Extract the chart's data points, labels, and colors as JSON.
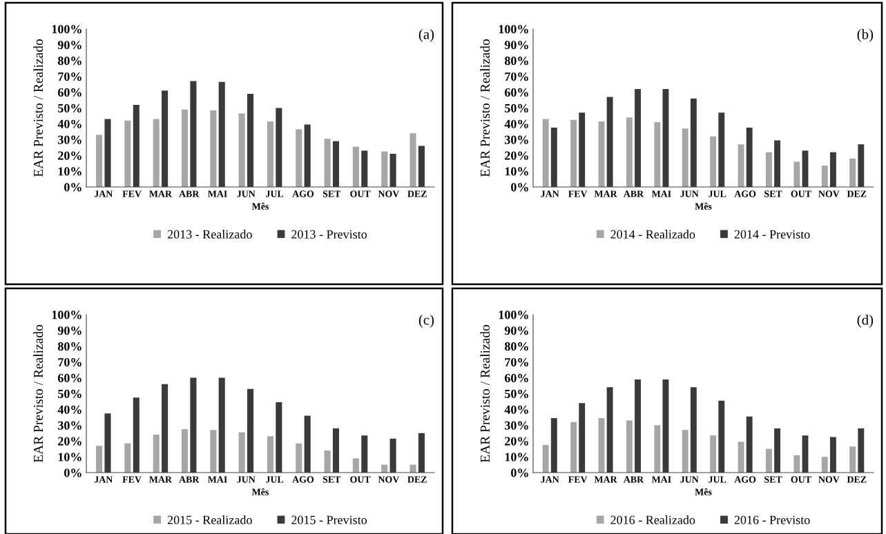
{
  "chart_data": [
    {
      "type": "bar",
      "categories": [
        "JAN",
        "FEV",
        "MAR",
        "ABR",
        "MAI",
        "JUN",
        "JUL",
        "AGO",
        "SET",
        "OUT",
        "NOV",
        "DEZ"
      ],
      "xlabel": "Mês",
      "ylabel": "EAR Previsto / Realizado",
      "annotations": [
        "(a)"
      ],
      "ylim": [
        0,
        100
      ],
      "yticks": [
        {
          "value": 0,
          "label": "0%"
        },
        {
          "value": 10,
          "label": "10%"
        },
        {
          "value": 20,
          "label": "20%"
        },
        {
          "value": 30,
          "label": "30%"
        },
        {
          "value": 40,
          "label": "40%"
        },
        {
          "value": 50,
          "label": "50%"
        },
        {
          "value": 60,
          "label": "60%"
        },
        {
          "value": 70,
          "label": "70%"
        },
        {
          "value": 80,
          "label": "80%"
        },
        {
          "value": 90,
          "label": "90%"
        },
        {
          "value": 100,
          "label": "100%"
        }
      ],
      "legend": "bottom",
      "grid": false,
      "series": [
        {
          "name": "2013 - Realizado",
          "color": "#a6a6a6",
          "values": [
            33,
            42,
            43,
            49,
            48.5,
            46.5,
            41.5,
            36.5,
            30.5,
            25.5,
            22.5,
            34
          ]
        },
        {
          "name": "2013 - Previsto",
          "color": "#3a3a3a",
          "values": [
            43,
            52,
            61,
            67,
            66.5,
            59,
            50,
            39.5,
            29,
            23,
            21,
            26
          ]
        }
      ]
    },
    {
      "type": "bar",
      "categories": [
        "JAN",
        "FEV",
        "MAR",
        "ABR",
        "MAI",
        "JUN",
        "JUL",
        "AGO",
        "SET",
        "OUT",
        "NOV",
        "DEZ"
      ],
      "xlabel": "Mês",
      "ylabel": "EAR Previsto / Realizado",
      "annotations": [
        "(b)"
      ],
      "ylim": [
        0,
        100
      ],
      "yticks": [
        {
          "value": 0,
          "label": "0%"
        },
        {
          "value": 10,
          "label": "10%"
        },
        {
          "value": 20,
          "label": "20%"
        },
        {
          "value": 30,
          "label": "30%"
        },
        {
          "value": 40,
          "label": "40%"
        },
        {
          "value": 50,
          "label": "50%"
        },
        {
          "value": 60,
          "label": "60%"
        },
        {
          "value": 70,
          "label": "70%"
        },
        {
          "value": 80,
          "label": "80%"
        },
        {
          "value": 90,
          "label": "90%"
        },
        {
          "value": 100,
          "label": "100%"
        }
      ],
      "legend": "bottom",
      "grid": false,
      "series": [
        {
          "name": "2014 - Realizado",
          "color": "#a6a6a6",
          "values": [
            43,
            42.5,
            41.5,
            44,
            41,
            37,
            32,
            27,
            22,
            16,
            13.5,
            18
          ]
        },
        {
          "name": "2014 - Previsto",
          "color": "#3a3a3a",
          "values": [
            37.5,
            47,
            57,
            62,
            62,
            56,
            47,
            37.5,
            29.5,
            23,
            22,
            27
          ]
        }
      ]
    },
    {
      "type": "bar",
      "categories": [
        "JAN",
        "FEV",
        "MAR",
        "ABR",
        "MAI",
        "JUN",
        "JUL",
        "AGO",
        "SET",
        "OUT",
        "NOV",
        "DEZ"
      ],
      "xlabel": "Mês",
      "ylabel": "EAR Previsto / Realizado",
      "annotations": [
        "(c)"
      ],
      "ylim": [
        0,
        100
      ],
      "yticks": [
        {
          "value": 0,
          "label": "0%"
        },
        {
          "value": 10,
          "label": "10%"
        },
        {
          "value": 20,
          "label": "20%"
        },
        {
          "value": 30,
          "label": "30%"
        },
        {
          "value": 40,
          "label": "40%"
        },
        {
          "value": 50,
          "label": "50%"
        },
        {
          "value": 60,
          "label": "60%"
        },
        {
          "value": 70,
          "label": "70%"
        },
        {
          "value": 80,
          "label": "80%"
        },
        {
          "value": 90,
          "label": "90%"
        },
        {
          "value": 100,
          "label": "100%"
        }
      ],
      "legend": "bottom",
      "grid": false,
      "series": [
        {
          "name": "2015 - Realizado",
          "color": "#a6a6a6",
          "values": [
            17,
            18.5,
            24,
            27.5,
            27,
            25.5,
            23,
            18.5,
            14,
            9,
            5,
            5
          ]
        },
        {
          "name": "2015 - Previsto",
          "color": "#3a3a3a",
          "values": [
            37.5,
            47.5,
            56,
            60,
            60,
            53,
            44.5,
            36,
            28,
            23.5,
            21.5,
            25
          ]
        }
      ]
    },
    {
      "type": "bar",
      "categories": [
        "JAN",
        "FEV",
        "MAR",
        "ABR",
        "MAI",
        "JUN",
        "JUL",
        "AGO",
        "SET",
        "OUT",
        "NOV",
        "DEZ"
      ],
      "xlabel": "Mês",
      "ylabel": "EAR Previsto / Realizado",
      "annotations": [
        "(d)"
      ],
      "ylim": [
        0,
        100
      ],
      "yticks": [
        {
          "value": 0,
          "label": "0%"
        },
        {
          "value": 10,
          "label": "10%"
        },
        {
          "value": 20,
          "label": "20%"
        },
        {
          "value": 30,
          "label": "30%"
        },
        {
          "value": 40,
          "label": "40%"
        },
        {
          "value": 50,
          "label": "50%"
        },
        {
          "value": 60,
          "label": "60%"
        },
        {
          "value": 70,
          "label": "70%"
        },
        {
          "value": 80,
          "label": "80%"
        },
        {
          "value": 90,
          "label": "90%"
        },
        {
          "value": 100,
          "label": "100%"
        }
      ],
      "legend": "bottom",
      "grid": false,
      "series": [
        {
          "name": "2016 - Realizado",
          "color": "#a6a6a6",
          "values": [
            17.5,
            32,
            34.5,
            33,
            30,
            27,
            23.5,
            19.5,
            15,
            11,
            10,
            16.5
          ]
        },
        {
          "name": "2016 - Previsto",
          "color": "#3a3a3a",
          "values": [
            34.5,
            44,
            54,
            59,
            59,
            54,
            45.5,
            35.5,
            28,
            23.5,
            22.5,
            28
          ]
        }
      ]
    }
  ]
}
